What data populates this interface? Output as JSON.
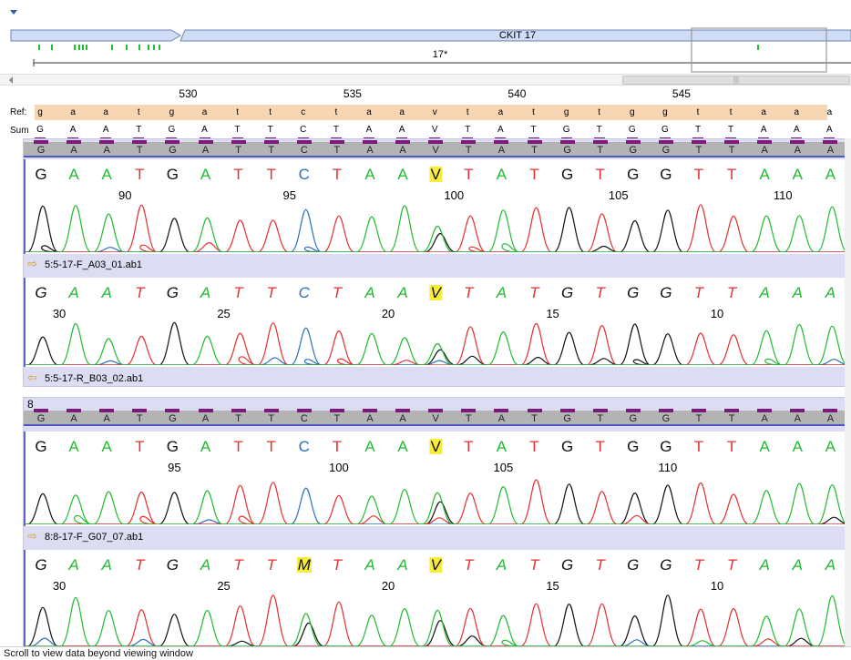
{
  "colors": {
    "A": "#22bb33",
    "T": "#e53030",
    "C": "#2a6fc0",
    "G": "#111111",
    "highlight": "#f7ec3c",
    "ref_bg": "#f6d6b3",
    "panel_bg": "#dcdcf2",
    "header_bg": "#b3b3b3",
    "mark": "#7a1a7a",
    "feature_bar": "#cfdcf5"
  },
  "icons": {
    "collapse": "chevron-down-icon",
    "scroll_left": "scroll-left-arrow-icon",
    "forward_read": "arrow-right-icon",
    "reverse_read": "arrow-left-icon"
  },
  "overview": {
    "feature_label": "CKIT 17",
    "contig_label": "17*",
    "scroll_thumb_grip": "|||"
  },
  "ruler": {
    "positions": [
      "530",
      "535",
      "540",
      "545"
    ]
  },
  "ref": {
    "label": "Ref:",
    "bases": [
      "g",
      "a",
      "a",
      "t",
      "g",
      "a",
      "t",
      "t",
      "c",
      "t",
      "a",
      "a",
      "v",
      "t",
      "a",
      "t",
      "g",
      "t",
      "g",
      "g",
      "t",
      "t",
      "a",
      "a",
      "a"
    ]
  },
  "sum": {
    "label": "Sum",
    "bases": [
      "G",
      "A",
      "A",
      "T",
      "G",
      "A",
      "T",
      "T",
      "C",
      "T",
      "A",
      "A",
      "V",
      "T",
      "A",
      "T",
      "G",
      "T",
      "G",
      "G",
      "T",
      "T",
      "A",
      "A",
      "A"
    ]
  },
  "groups": [
    {
      "label": "",
      "consensus": [
        "G",
        "A",
        "A",
        "T",
        "G",
        "A",
        "T",
        "T",
        "C",
        "T",
        "A",
        "A",
        "V",
        "T",
        "A",
        "T",
        "G",
        "T",
        "G",
        "G",
        "T",
        "T",
        "A",
        "A",
        "A"
      ],
      "reads": [
        {
          "file": "5:5-17-F_A03_01.ab1",
          "direction": "forward",
          "bases": [
            "G",
            "A",
            "A",
            "T",
            "G",
            "A",
            "T",
            "T",
            "C",
            "T",
            "A",
            "A",
            "V",
            "T",
            "A",
            "T",
            "G",
            "T",
            "G",
            "G",
            "T",
            "T",
            "A",
            "A",
            "A"
          ],
          "positions": [
            {
              "label": "90",
              "col": 2.5
            },
            {
              "label": "95",
              "col": 7.5
            },
            {
              "label": "100",
              "col": 12.5
            },
            {
              "label": "105",
              "col": 17.5
            },
            {
              "label": "110",
              "col": 22.5
            }
          ]
        },
        {
          "file": "5:5-17-R_B03_02.ab1",
          "direction": "reverse",
          "bases": [
            "G",
            "A",
            "A",
            "T",
            "G",
            "A",
            "T",
            "T",
            "C",
            "T",
            "A",
            "A",
            "V",
            "T",
            "A",
            "T",
            "G",
            "T",
            "G",
            "G",
            "T",
            "T",
            "A",
            "A",
            "A"
          ],
          "positions": [
            {
              "label": "30",
              "col": 0.5
            },
            {
              "label": "25",
              "col": 5.5
            },
            {
              "label": "20",
              "col": 10.5
            },
            {
              "label": "15",
              "col": 15.5
            },
            {
              "label": "10",
              "col": 20.5
            }
          ]
        }
      ]
    },
    {
      "label": "8",
      "consensus": [
        "G",
        "A",
        "A",
        "T",
        "G",
        "A",
        "T",
        "T",
        "C",
        "T",
        "A",
        "A",
        "V",
        "T",
        "A",
        "T",
        "G",
        "T",
        "G",
        "G",
        "T",
        "T",
        "A",
        "A",
        "A"
      ],
      "reads": [
        {
          "file": "8:8-17-F_G07_07.ab1",
          "direction": "forward",
          "bases": [
            "G",
            "A",
            "A",
            "T",
            "G",
            "A",
            "T",
            "T",
            "C",
            "T",
            "A",
            "A",
            "V",
            "T",
            "A",
            "T",
            "G",
            "T",
            "G",
            "G",
            "T",
            "T",
            "A",
            "A",
            "A"
          ],
          "positions": [
            {
              "label": "95",
              "col": 4
            },
            {
              "label": "100",
              "col": 9
            },
            {
              "label": "105",
              "col": 14
            },
            {
              "label": "110",
              "col": 19
            }
          ]
        },
        {
          "file": "",
          "direction": "reverse",
          "bases": [
            "G",
            "A",
            "A",
            "T",
            "G",
            "A",
            "T",
            "T",
            "M",
            "T",
            "A",
            "A",
            "V",
            "T",
            "A",
            "T",
            "G",
            "T",
            "G",
            "G",
            "T",
            "T",
            "A",
            "A",
            "A"
          ],
          "positions": [
            {
              "label": "30",
              "col": 0.5
            },
            {
              "label": "25",
              "col": 5.5
            },
            {
              "label": "20",
              "col": 10.5
            },
            {
              "label": "15",
              "col": 15.5
            },
            {
              "label": "10",
              "col": 20.5
            }
          ]
        }
      ]
    }
  ],
  "status": {
    "text": "Scroll to view data beyond viewing window"
  }
}
